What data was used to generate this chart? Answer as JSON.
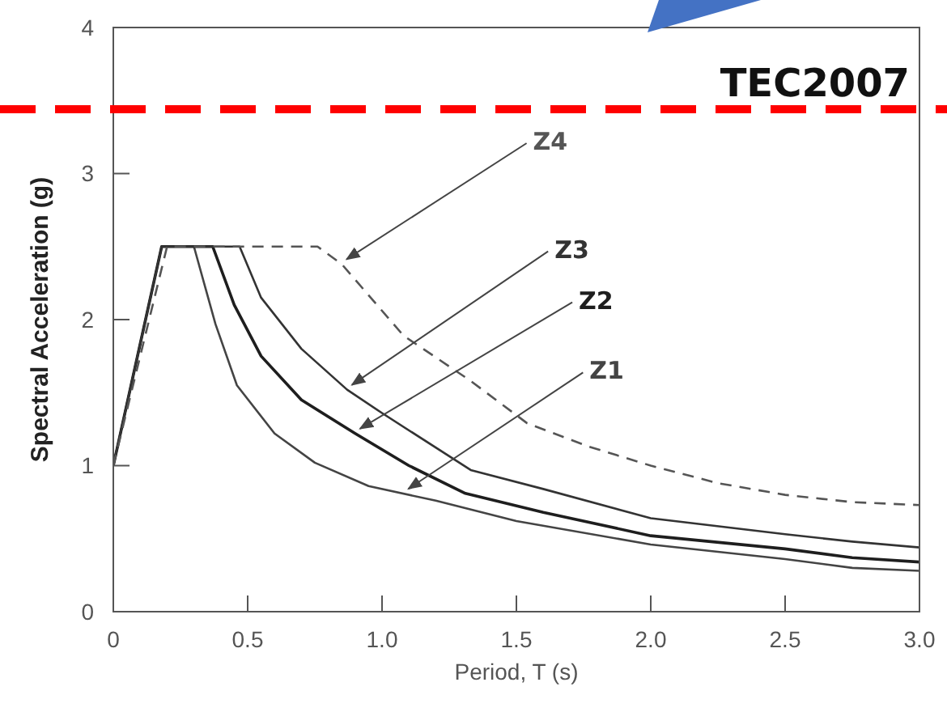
{
  "chart_data": {
    "type": "line",
    "xlabel": "Period, T (s)",
    "ylabel": "Spectral Acceleration (g)",
    "xlim": [
      0,
      3
    ],
    "ylim": [
      0,
      4
    ],
    "xticks": [
      0,
      {
        "value": 0.5,
        "label": "0.5"
      },
      {
        "value": 1,
        "label": "1.0"
      },
      {
        "value": 1.5,
        "label": "1.5"
      },
      {
        "value": 2,
        "label": "2.0"
      },
      {
        "value": 2.5,
        "label": "2.5"
      },
      {
        "value": 3,
        "label": "3.0"
      }
    ],
    "yticks": [
      0,
      1,
      2,
      3,
      4
    ],
    "grid": false,
    "legend": false,
    "marker": "none",
    "line_style": "solid",
    "series": [
      {
        "name": "Z1",
        "color": "#444444",
        "x": [
          0,
          0.18,
          0.3,
          0.38,
          0.46,
          0.6,
          0.75,
          0.95,
          1.2,
          1.5,
          2.0,
          2.5,
          2.75,
          3.0
        ],
        "values": [
          1,
          2.5,
          2.5,
          1.97,
          1.55,
          1.22,
          1.02,
          0.86,
          0.76,
          0.62,
          0.46,
          0.36,
          0.3,
          0.28
        ]
      },
      {
        "name": "Z2",
        "color": "#1e1e1e",
        "x": [
          0,
          0.18,
          0.37,
          0.45,
          0.55,
          0.7,
          0.9,
          1.1,
          1.31,
          1.6,
          2.0,
          2.5,
          2.75,
          3.0
        ],
        "values": [
          1,
          2.5,
          2.5,
          2.1,
          1.75,
          1.45,
          1.22,
          1.0,
          0.81,
          0.68,
          0.52,
          0.43,
          0.37,
          0.34
        ]
      },
      {
        "name": "Z3",
        "color": "#333333",
        "x": [
          0,
          0.18,
          0.47,
          0.55,
          0.7,
          0.87,
          1.0,
          1.33,
          1.6,
          2.0,
          2.5,
          2.75,
          3.0
        ],
        "values": [
          1,
          2.5,
          2.5,
          2.15,
          1.8,
          1.52,
          1.36,
          0.97,
          0.84,
          0.64,
          0.53,
          0.48,
          0.44
        ]
      },
      {
        "name": "Z4",
        "color": "#555555",
        "line_style": "dashed",
        "x": [
          0,
          0.2,
          0.76,
          0.85,
          1.08,
          1.33,
          1.54,
          1.77,
          2.0,
          2.25,
          2.5,
          2.75,
          3.0
        ],
        "values": [
          1,
          2.5,
          2.5,
          2.38,
          1.89,
          1.58,
          1.29,
          1.13,
          1.0,
          0.88,
          0.8,
          0.75,
          0.73
        ]
      }
    ],
    "ref_lines": [
      {
        "axis": "y",
        "value": 3.44,
        "label": "TEC2007",
        "color": "#ff0000",
        "line_style": "dashed"
      }
    ]
  }
}
